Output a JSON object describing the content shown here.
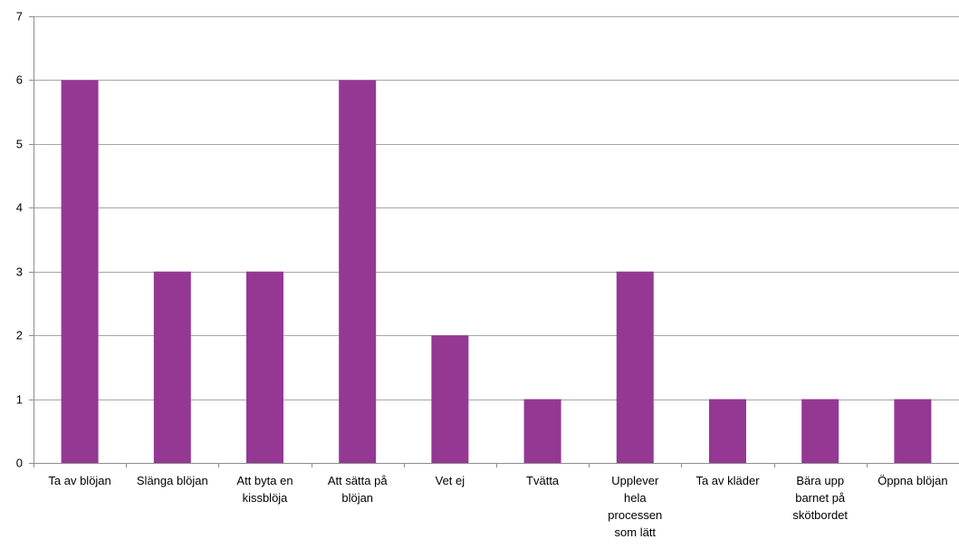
{
  "chart_data": {
    "type": "bar",
    "categories": [
      "Ta av blöjan",
      "Slänga blöjan",
      "Att byta en kissblöja",
      "Att sätta på blöjan",
      "Vet ej",
      "Tvätta",
      "Upplever hela processen som lätt",
      "Ta av kläder",
      "Bära upp barnet på skötbordet",
      "Öppna blöjan"
    ],
    "category_lines": [
      [
        "Ta av blöjan"
      ],
      [
        "Slänga blöjan"
      ],
      [
        "Att byta en",
        "kissblöja"
      ],
      [
        "Att sätta på",
        "blöjan"
      ],
      [
        "Vet ej"
      ],
      [
        "Tvätta"
      ],
      [
        "Upplever",
        "hela",
        "processen",
        "som lätt"
      ],
      [
        "Ta av kläder"
      ],
      [
        "Bära upp",
        "barnet på",
        "skötbordet"
      ],
      [
        "Öppna blöjan"
      ]
    ],
    "values": [
      6,
      3,
      3,
      6,
      2,
      1,
      3,
      1,
      1,
      1
    ],
    "ylim": [
      0,
      7
    ],
    "yticks": [
      0,
      1,
      2,
      3,
      4,
      5,
      6,
      7
    ],
    "grid": true,
    "legend": "none",
    "title": "",
    "xlabel": "",
    "ylabel": "",
    "colors": {
      "bar": "#943894",
      "grid": "#a6a6a6",
      "axis": "#8c8c8c"
    }
  }
}
